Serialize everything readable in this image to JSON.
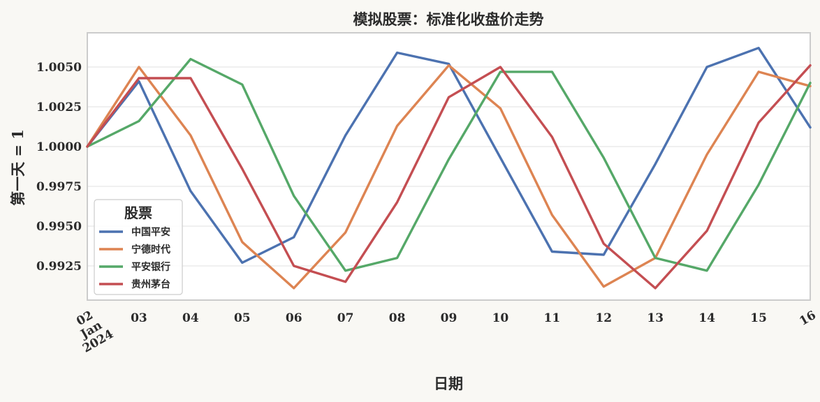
{
  "chart_data": {
    "type": "line",
    "title": "模拟股票：标准化收盘价走势",
    "xlabel": "日期",
    "ylabel": "第一天 = 1",
    "x": [
      "2024-01-02",
      "2024-01-03",
      "2024-01-04",
      "2024-01-05",
      "2024-01-06",
      "2024-01-07",
      "2024-01-08",
      "2024-01-09",
      "2024-01-10",
      "2024-01-11",
      "2024-01-12",
      "2024-01-13",
      "2024-01-14",
      "2024-01-15",
      "2024-01-16"
    ],
    "x_tick_labels": [
      {
        "lines": [
          "02",
          "Jan",
          "2024"
        ],
        "rotated": true
      },
      {
        "lines": [
          "03"
        ]
      },
      {
        "lines": [
          "04"
        ]
      },
      {
        "lines": [
          "05"
        ]
      },
      {
        "lines": [
          "06"
        ]
      },
      {
        "lines": [
          "07"
        ]
      },
      {
        "lines": [
          "08"
        ]
      },
      {
        "lines": [
          "09"
        ]
      },
      {
        "lines": [
          "10"
        ]
      },
      {
        "lines": [
          "11"
        ]
      },
      {
        "lines": [
          "12"
        ]
      },
      {
        "lines": [
          "13"
        ]
      },
      {
        "lines": [
          "14"
        ]
      },
      {
        "lines": [
          "15"
        ]
      },
      {
        "lines": [
          "16"
        ],
        "rotated": true
      }
    ],
    "y_ticks": [
      0.9925,
      0.995,
      0.9975,
      1.0,
      1.0025,
      1.005
    ],
    "y_tick_labels": [
      "0.9925",
      "0.9950",
      "0.9975",
      "1.0000",
      "1.0025",
      "1.0050"
    ],
    "ylim": [
      0.99035,
      1.00715
    ],
    "grid": true,
    "grid_axis": "y",
    "legend": {
      "title": "股票",
      "position": "lower-left"
    },
    "colors": {
      "background": "#f9f8f4",
      "plot_background": "#ffffff",
      "frame": "#cccccc",
      "grid": "#ebebeb",
      "text": "#2b2b2b"
    },
    "series": [
      {
        "name": "中国平安",
        "color": "#4c72b0",
        "values": [
          1.0,
          1.0041,
          0.9972,
          0.9927,
          0.9943,
          1.0007,
          1.0059,
          1.0052,
          0.9993,
          0.9934,
          0.9932,
          0.9989,
          1.005,
          1.0062,
          1.0012
        ]
      },
      {
        "name": "宁德时代",
        "color": "#dd8452",
        "values": [
          1.0,
          1.005,
          1.0007,
          0.994,
          0.9911,
          0.9946,
          1.0013,
          1.0051,
          1.0024,
          0.9957,
          0.9912,
          0.993,
          0.9995,
          1.0047,
          1.0038
        ]
      },
      {
        "name": "平安银行",
        "color": "#55a868",
        "values": [
          1.0,
          1.0016,
          1.0055,
          1.0039,
          0.9969,
          0.9922,
          0.993,
          0.9992,
          1.0047,
          1.0047,
          0.9993,
          0.993,
          0.9922,
          0.9976,
          1.004
        ]
      },
      {
        "name": "贵州茅台",
        "color": "#c44e52",
        "values": [
          1.0,
          1.0043,
          1.0043,
          0.9986,
          0.9925,
          0.9915,
          0.9965,
          1.0031,
          1.005,
          1.0006,
          0.9939,
          0.9911,
          0.9947,
          1.0015,
          1.0051
        ]
      }
    ]
  }
}
